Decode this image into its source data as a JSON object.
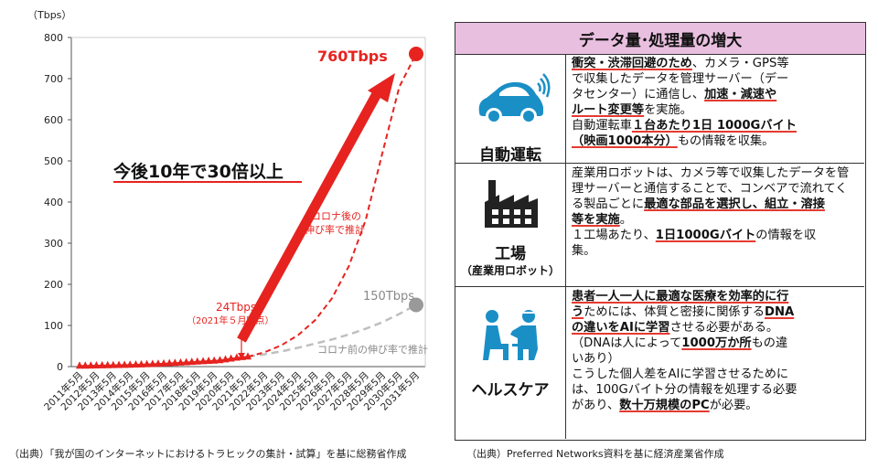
{
  "chart_data": {
    "type": "line",
    "ylabel": "（Tbps）",
    "ylim": [
      0,
      800
    ],
    "yticks": [
      0,
      100,
      200,
      300,
      400,
      500,
      600,
      700,
      800
    ],
    "x_tick_labels": [
      "2011年5月",
      "2012年5月",
      "2013年5月",
      "2014年5月",
      "2015年5月",
      "2016年5月",
      "2017年5月",
      "2018年5月",
      "2019年5月",
      "2020年5月",
      "2021年5月",
      "2022年5月",
      "2023年5月",
      "2024年5月",
      "2025年5月",
      "2026年5月",
      "2027年5月",
      "2028年5月",
      "2029年5月",
      "2030年5月",
      "2031年5月"
    ],
    "series": [
      {
        "style": "measured",
        "color": "#e6231f",
        "x": [
          2011.33,
          2011.67,
          2012.0,
          2012.33,
          2012.67,
          2013.0,
          2013.33,
          2013.67,
          2014.0,
          2014.33,
          2014.67,
          2015.0,
          2015.33,
          2015.67,
          2016.0,
          2016.33,
          2016.67,
          2017.0,
          2017.33,
          2017.67,
          2018.0,
          2018.33,
          2018.67,
          2019.0,
          2019.33,
          2019.67,
          2020.0,
          2020.33,
          2020.67,
          2021.0,
          2021.33
        ],
        "values": [
          1.6,
          1.8,
          2.0,
          2.2,
          2.5,
          2.7,
          3.0,
          3.3,
          3.6,
          4.0,
          4.4,
          4.8,
          5.3,
          5.8,
          6.4,
          7.0,
          7.7,
          8.4,
          9.2,
          10.0,
          10.8,
          11.6,
          12.4,
          13.2,
          14.0,
          15.0,
          17.0,
          19.0,
          21.0,
          22.5,
          24.0
        ]
      },
      {
        "style": "dashed",
        "color": "#e6231f",
        "x": [
          2021.33,
          2022.33,
          2023.33,
          2024.33,
          2025.33,
          2026.33,
          2027.33,
          2028.33,
          2029.33,
          2030.33,
          2031.33
        ],
        "values": [
          24,
          35,
          52,
          77,
          113,
          166,
          244,
          356,
          520,
          680,
          760
        ]
      },
      {
        "style": "dashed",
        "color": "#bfbfbf",
        "x": [
          2021.33,
          2022.33,
          2023.33,
          2024.33,
          2025.33,
          2026.33,
          2027.33,
          2028.33,
          2029.33,
          2030.33,
          2031.33
        ],
        "values": [
          24,
          30,
          37,
          46,
          56,
          66,
          78,
          92,
          108,
          128,
          150
        ]
      }
    ],
    "annotations": {
      "end_high": "760Tbps",
      "end_low": "150Tbps",
      "point_label": "24Tbps",
      "point_date": "（2021年５月時点）",
      "headline": "今後10年で30倍以上",
      "corona_after_1": "コロナ後の",
      "corona_after_2": "伸び率で推計",
      "corona_before": "コロナ前の伸び率で推計"
    },
    "source": "（出典）「我が国のインターネットにおけるトラヒックの集計・試算」を基に総務省作成"
  },
  "panel": {
    "title": "データ量･処理量の増大",
    "rows": [
      {
        "label": "自動運転",
        "icon": "car-icon",
        "lines": [
          [
            {
              "t": "衝突・渋滞回避のため",
              "u": true
            },
            {
              "t": "、カメラ・GPS等"
            }
          ],
          [
            {
              "t": "で収集したデータを管理サーバー（デー"
            }
          ],
          [
            {
              "t": "タセンター）に通信し、"
            },
            {
              "t": "加速・減速や",
              "u": true
            }
          ],
          [
            {
              "t": "ルート変更等",
              "u": true
            },
            {
              "t": "を実施。"
            }
          ],
          [
            {
              "t": "自動運転車"
            },
            {
              "t": "１台あたり1日 1000Gバイト",
              "u": true
            }
          ],
          [
            {
              "t": "（映画1000本分）",
              "u": true
            },
            {
              "t": "もの情報を収集。"
            }
          ]
        ]
      },
      {
        "label": "工場",
        "sublabel": "（産業用ロボット）",
        "icon": "factory-icon",
        "lines": [
          [
            {
              "t": "産業用ロボットは、カメラ等で収集したデータを管"
            }
          ],
          [
            {
              "t": "理サーバーと通信することで、コンベアで流れてく"
            }
          ],
          [
            {
              "t": "る製品ごとに"
            },
            {
              "t": "最適な部品を選択し、組立・溶接",
              "u": true
            }
          ],
          [
            {
              "t": "等を実施",
              "u": true
            },
            {
              "t": "。"
            }
          ],
          [
            {
              "t": "１工場あたり、"
            },
            {
              "t": "1日1000Gバイト",
              "u": true
            },
            {
              "t": "の情報を収"
            }
          ],
          [
            {
              "t": "集。"
            }
          ]
        ]
      },
      {
        "label": "ヘルスケア",
        "icon": "healthcare-icon",
        "lines": [
          [
            {
              "t": "患者一人一人に最適な医療を効率的に行",
              "u": true
            }
          ],
          [
            {
              "t": "う",
              "u": true
            },
            {
              "t": "ためには、体質と密接に関係する"
            },
            {
              "t": "DNA",
              "u": true
            }
          ],
          [
            {
              "t": "の違いをAIに学習",
              "u": true
            },
            {
              "t": "させる必要がある。"
            }
          ],
          [
            {
              "t": "（DNAは人によって"
            },
            {
              "t": "1000万か所",
              "u": true
            },
            {
              "t": "もの違"
            }
          ],
          [
            {
              "t": "いあり）"
            }
          ],
          [
            {
              "t": "こうした個人差をAIに学習させるために"
            }
          ],
          [
            {
              "t": "は、100Gバイト分の情報を処理する必要"
            }
          ],
          [
            {
              "t": "があり、"
            },
            {
              "t": "数十万規模のPC",
              "u": true
            },
            {
              "t": "が必要。"
            }
          ]
        ]
      }
    ],
    "source": "（出典）Preferred Networks資料を基に経済産業省作成"
  },
  "colors": {
    "red": "#e6231f",
    "gray": "#bfbfbf",
    "icon_blue": "#1a8fc6",
    "header_pink": "#e9bfe0"
  }
}
